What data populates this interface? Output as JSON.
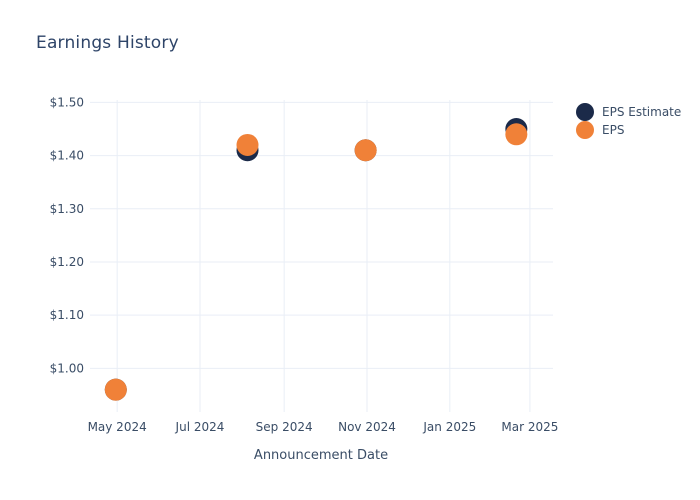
{
  "header": {
    "title": "Earnings History"
  },
  "colors": {
    "background": "#ffffff",
    "grid": "#e9eef6",
    "title_text": "#2e4468",
    "axis_text": "#3a4d66",
    "eps_estimate": "#1b2a49",
    "eps": "#f08138"
  },
  "legend": {
    "items": [
      {
        "label": "EPS Estimate",
        "color": "#1b2a49"
      },
      {
        "label": "EPS",
        "color": "#f08138"
      }
    ]
  },
  "chart_data": {
    "type": "scatter",
    "title": "Earnings History",
    "xlabel": "Announcement Date",
    "ylabel": "",
    "grid": true,
    "legend_position": "right",
    "marker_radius": 11,
    "x_domain": [
      "2024-04-11",
      "2025-03-18"
    ],
    "y_domain": [
      0.918,
      1.512
    ],
    "x_ticks": [
      {
        "date": "2024-05-01",
        "label": "May 2024"
      },
      {
        "date": "2024-07-01",
        "label": "Jul 2024"
      },
      {
        "date": "2024-09-01",
        "label": "Sep 2024"
      },
      {
        "date": "2024-11-01",
        "label": "Nov 2024"
      },
      {
        "date": "2025-01-01",
        "label": "Jan 2025"
      },
      {
        "date": "2025-03-01",
        "label": "Mar 2025"
      }
    ],
    "y_ticks": [
      {
        "value": 1.0,
        "label": "$1.00"
      },
      {
        "value": 1.1,
        "label": "$1.10"
      },
      {
        "value": 1.2,
        "label": "$1.20"
      },
      {
        "value": 1.3,
        "label": "$1.30"
      },
      {
        "value": 1.4,
        "label": "$1.40"
      },
      {
        "value": 1.5,
        "label": "$1.50"
      }
    ],
    "series": [
      {
        "name": "EPS Estimate",
        "color": "#1b2a49",
        "points": [
          {
            "date": "2024-04-30",
            "value": 0.96
          },
          {
            "date": "2024-08-05",
            "value": 1.41
          },
          {
            "date": "2024-10-31",
            "value": 1.41
          },
          {
            "date": "2025-02-19",
            "value": 1.45
          }
        ]
      },
      {
        "name": "EPS",
        "color": "#f08138",
        "points": [
          {
            "date": "2024-04-30",
            "value": 0.96
          },
          {
            "date": "2024-08-05",
            "value": 1.42
          },
          {
            "date": "2024-10-31",
            "value": 1.41
          },
          {
            "date": "2025-02-19",
            "value": 1.44
          }
        ]
      }
    ]
  }
}
